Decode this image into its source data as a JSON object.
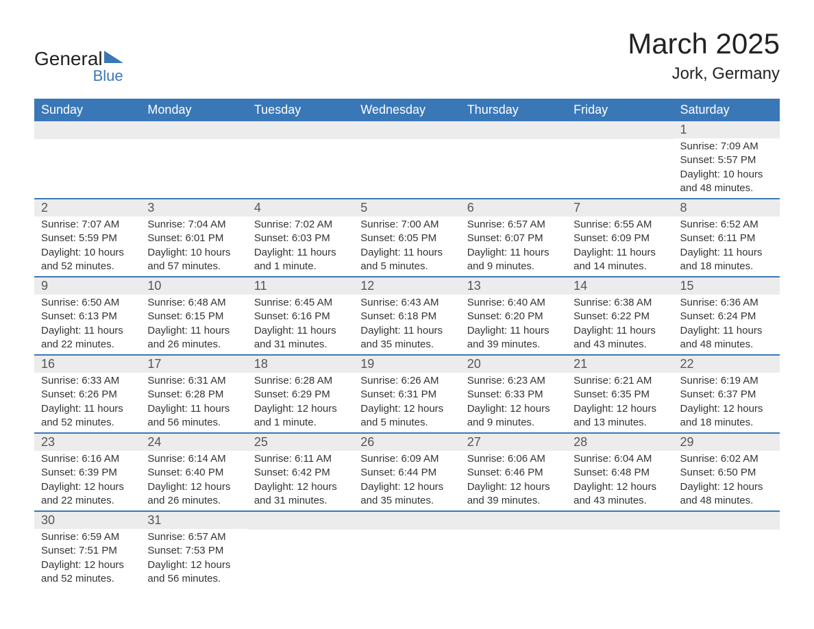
{
  "logo": {
    "text": "General",
    "sub": "Blue"
  },
  "title": "March 2025",
  "location": "Jork, Germany",
  "colors": {
    "header_bg": "#3a77b7",
    "header_text": "#ffffff",
    "daynum_bg": "#ececec",
    "border": "#3a77b7",
    "body_text": "#333333",
    "page_bg": "#ffffff"
  },
  "day_headers": [
    "Sunday",
    "Monday",
    "Tuesday",
    "Wednesday",
    "Thursday",
    "Friday",
    "Saturday"
  ],
  "weeks": [
    [
      null,
      null,
      null,
      null,
      null,
      null,
      {
        "n": "1",
        "sunrise": "Sunrise: 7:09 AM",
        "sunset": "Sunset: 5:57 PM",
        "daylight": "Daylight: 10 hours and 48 minutes."
      }
    ],
    [
      {
        "n": "2",
        "sunrise": "Sunrise: 7:07 AM",
        "sunset": "Sunset: 5:59 PM",
        "daylight": "Daylight: 10 hours and 52 minutes."
      },
      {
        "n": "3",
        "sunrise": "Sunrise: 7:04 AM",
        "sunset": "Sunset: 6:01 PM",
        "daylight": "Daylight: 10 hours and 57 minutes."
      },
      {
        "n": "4",
        "sunrise": "Sunrise: 7:02 AM",
        "sunset": "Sunset: 6:03 PM",
        "daylight": "Daylight: 11 hours and 1 minute."
      },
      {
        "n": "5",
        "sunrise": "Sunrise: 7:00 AM",
        "sunset": "Sunset: 6:05 PM",
        "daylight": "Daylight: 11 hours and 5 minutes."
      },
      {
        "n": "6",
        "sunrise": "Sunrise: 6:57 AM",
        "sunset": "Sunset: 6:07 PM",
        "daylight": "Daylight: 11 hours and 9 minutes."
      },
      {
        "n": "7",
        "sunrise": "Sunrise: 6:55 AM",
        "sunset": "Sunset: 6:09 PM",
        "daylight": "Daylight: 11 hours and 14 minutes."
      },
      {
        "n": "8",
        "sunrise": "Sunrise: 6:52 AM",
        "sunset": "Sunset: 6:11 PM",
        "daylight": "Daylight: 11 hours and 18 minutes."
      }
    ],
    [
      {
        "n": "9",
        "sunrise": "Sunrise: 6:50 AM",
        "sunset": "Sunset: 6:13 PM",
        "daylight": "Daylight: 11 hours and 22 minutes."
      },
      {
        "n": "10",
        "sunrise": "Sunrise: 6:48 AM",
        "sunset": "Sunset: 6:15 PM",
        "daylight": "Daylight: 11 hours and 26 minutes."
      },
      {
        "n": "11",
        "sunrise": "Sunrise: 6:45 AM",
        "sunset": "Sunset: 6:16 PM",
        "daylight": "Daylight: 11 hours and 31 minutes."
      },
      {
        "n": "12",
        "sunrise": "Sunrise: 6:43 AM",
        "sunset": "Sunset: 6:18 PM",
        "daylight": "Daylight: 11 hours and 35 minutes."
      },
      {
        "n": "13",
        "sunrise": "Sunrise: 6:40 AM",
        "sunset": "Sunset: 6:20 PM",
        "daylight": "Daylight: 11 hours and 39 minutes."
      },
      {
        "n": "14",
        "sunrise": "Sunrise: 6:38 AM",
        "sunset": "Sunset: 6:22 PM",
        "daylight": "Daylight: 11 hours and 43 minutes."
      },
      {
        "n": "15",
        "sunrise": "Sunrise: 6:36 AM",
        "sunset": "Sunset: 6:24 PM",
        "daylight": "Daylight: 11 hours and 48 minutes."
      }
    ],
    [
      {
        "n": "16",
        "sunrise": "Sunrise: 6:33 AM",
        "sunset": "Sunset: 6:26 PM",
        "daylight": "Daylight: 11 hours and 52 minutes."
      },
      {
        "n": "17",
        "sunrise": "Sunrise: 6:31 AM",
        "sunset": "Sunset: 6:28 PM",
        "daylight": "Daylight: 11 hours and 56 minutes."
      },
      {
        "n": "18",
        "sunrise": "Sunrise: 6:28 AM",
        "sunset": "Sunset: 6:29 PM",
        "daylight": "Daylight: 12 hours and 1 minute."
      },
      {
        "n": "19",
        "sunrise": "Sunrise: 6:26 AM",
        "sunset": "Sunset: 6:31 PM",
        "daylight": "Daylight: 12 hours and 5 minutes."
      },
      {
        "n": "20",
        "sunrise": "Sunrise: 6:23 AM",
        "sunset": "Sunset: 6:33 PM",
        "daylight": "Daylight: 12 hours and 9 minutes."
      },
      {
        "n": "21",
        "sunrise": "Sunrise: 6:21 AM",
        "sunset": "Sunset: 6:35 PM",
        "daylight": "Daylight: 12 hours and 13 minutes."
      },
      {
        "n": "22",
        "sunrise": "Sunrise: 6:19 AM",
        "sunset": "Sunset: 6:37 PM",
        "daylight": "Daylight: 12 hours and 18 minutes."
      }
    ],
    [
      {
        "n": "23",
        "sunrise": "Sunrise: 6:16 AM",
        "sunset": "Sunset: 6:39 PM",
        "daylight": "Daylight: 12 hours and 22 minutes."
      },
      {
        "n": "24",
        "sunrise": "Sunrise: 6:14 AM",
        "sunset": "Sunset: 6:40 PM",
        "daylight": "Daylight: 12 hours and 26 minutes."
      },
      {
        "n": "25",
        "sunrise": "Sunrise: 6:11 AM",
        "sunset": "Sunset: 6:42 PM",
        "daylight": "Daylight: 12 hours and 31 minutes."
      },
      {
        "n": "26",
        "sunrise": "Sunrise: 6:09 AM",
        "sunset": "Sunset: 6:44 PM",
        "daylight": "Daylight: 12 hours and 35 minutes."
      },
      {
        "n": "27",
        "sunrise": "Sunrise: 6:06 AM",
        "sunset": "Sunset: 6:46 PM",
        "daylight": "Daylight: 12 hours and 39 minutes."
      },
      {
        "n": "28",
        "sunrise": "Sunrise: 6:04 AM",
        "sunset": "Sunset: 6:48 PM",
        "daylight": "Daylight: 12 hours and 43 minutes."
      },
      {
        "n": "29",
        "sunrise": "Sunrise: 6:02 AM",
        "sunset": "Sunset: 6:50 PM",
        "daylight": "Daylight: 12 hours and 48 minutes."
      }
    ],
    [
      {
        "n": "30",
        "sunrise": "Sunrise: 6:59 AM",
        "sunset": "Sunset: 7:51 PM",
        "daylight": "Daylight: 12 hours and 52 minutes."
      },
      {
        "n": "31",
        "sunrise": "Sunrise: 6:57 AM",
        "sunset": "Sunset: 7:53 PM",
        "daylight": "Daylight: 12 hours and 56 minutes."
      },
      null,
      null,
      null,
      null,
      null
    ]
  ]
}
